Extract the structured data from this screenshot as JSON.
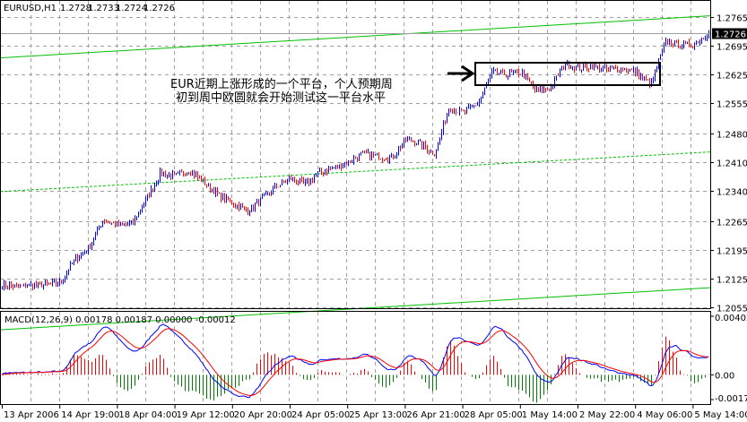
{
  "header": {
    "symbol": "EURUSD,H1",
    "open": "1.2728",
    "high": "1.2733",
    "low": "1.2724",
    "close": "1.2726"
  },
  "annotation": {
    "line1": "EUR近期上涨形成的一个平台，个人预期周",
    "line2": "初到周中欧圆就会开始测试这一平台水平"
  },
  "colors": {
    "up": "#0000ff",
    "down": "#ff0000",
    "trendline": "#00c000",
    "grid": "#a0a0a0",
    "macd_main": "#0000ff",
    "macd_signal": "#ff0000",
    "hist_pos": "#ff0000",
    "hist_neg": "#008000"
  },
  "chart_data": [
    {
      "type": "candlestick-bars",
      "title": "EURUSD,H1",
      "ylim": [
        1.2055,
        1.2765
      ],
      "price_ticks": [
        "1.2765",
        "1.2695",
        "1.2625",
        "1.2555",
        "1.2480",
        "1.2410",
        "1.2340",
        "1.2265",
        "1.2195",
        "1.2125",
        "1.2055"
      ],
      "current_price": "1.2726",
      "time_ticks": [
        "13 Apr 2006",
        "14 Apr 19:00",
        "18 Apr 04:00",
        "19 Apr 12:00",
        "20 Apr 20:00",
        "24 Apr 05:00",
        "25 Apr 13:00",
        "26 Apr 21:00",
        "28 Apr 05:00",
        "1 May 14:00",
        "2 May 22:00",
        "4 May 06:00",
        "5 May 14:00"
      ],
      "closes": [
        1.211,
        1.2105,
        1.211,
        1.211,
        1.2115,
        1.217,
        1.22,
        1.227,
        1.2255,
        1.226,
        1.232,
        1.2385,
        1.2375,
        1.239,
        1.236,
        1.233,
        1.231,
        1.229,
        1.232,
        1.235,
        1.237,
        1.2355,
        1.2385,
        1.2395,
        1.241,
        1.243,
        1.2425,
        1.242,
        1.2465,
        1.2455,
        1.243,
        1.2545,
        1.253,
        1.2555,
        1.263,
        1.2625,
        1.263,
        1.2585,
        1.259,
        1.265,
        1.264,
        1.2645,
        1.2635,
        1.264,
        1.263,
        1.26,
        1.2705,
        1.2695,
        1.27,
        1.2726
      ],
      "trendlines": [
        {
          "style": "solid",
          "start": 1.2665,
          "end": 1.2768
        },
        {
          "style": "dashed",
          "start": 1.2338,
          "end": 1.2435
        },
        {
          "style": "solid",
          "start": 1.2,
          "end": 1.2103
        }
      ]
    },
    {
      "type": "line+histogram",
      "title": "MACD(12,26,9) 0.00178 0.00187 0.00000 -0.00012",
      "ylim": [
        -0.0017,
        0.00402
      ],
      "y_ticks": [
        "0.00402",
        "0.00",
        "-0.0017"
      ]
    }
  ]
}
